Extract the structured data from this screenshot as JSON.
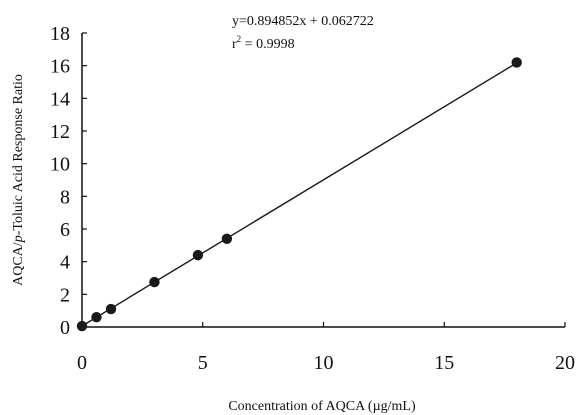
{
  "chart_data": {
    "type": "scatter",
    "xlabel": "Concentration of AQCA (µg/mL)",
    "ylabel_parts": [
      "AQCA/",
      "p",
      "-Toluic Acid Response Ratio"
    ],
    "xlim": [
      0,
      20
    ],
    "ylim": [
      0,
      18
    ],
    "xticks": [
      0,
      5,
      10,
      15,
      20
    ],
    "yticks": [
      0,
      2,
      4,
      6,
      8,
      10,
      12,
      14,
      16,
      18
    ],
    "grid": false,
    "points": [
      {
        "x": 0,
        "y": 0.06
      },
      {
        "x": 0.6,
        "y": 0.6
      },
      {
        "x": 1.2,
        "y": 1.1
      },
      {
        "x": 3.0,
        "y": 2.75
      },
      {
        "x": 4.8,
        "y": 4.4
      },
      {
        "x": 6.0,
        "y": 5.4
      },
      {
        "x": 18.0,
        "y": 16.2
      }
    ],
    "fit": {
      "slope": 0.894852,
      "intercept": 0.062722,
      "x_range": [
        0,
        18
      ]
    },
    "equation_text": "y=0.894852x + 0.062722",
    "r2_prefix": "r",
    "r2_sup": "2",
    "r2_value": " = 0.9998",
    "marker_color": "#1a1a1a",
    "line_color": "#1a1a1a"
  }
}
